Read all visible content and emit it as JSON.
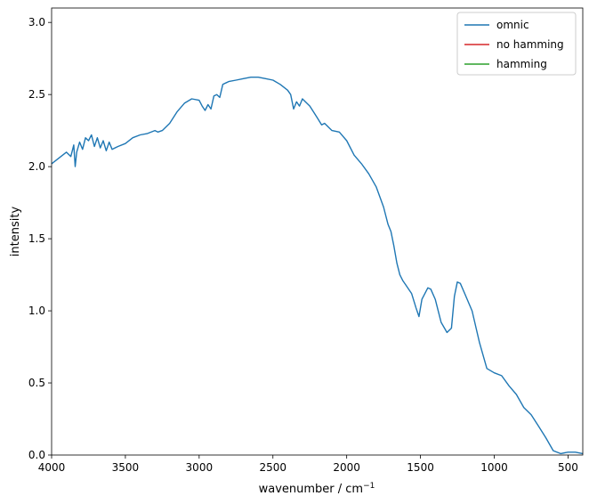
{
  "chart_data": {
    "type": "line",
    "title": "",
    "xlabel": "wavenumber / cm",
    "xlabel_sup": "−1",
    "ylabel": "intensity",
    "xlim": [
      4000,
      400
    ],
    "ylim": [
      0.0,
      3.1
    ],
    "x_inverted": true,
    "x_ticks": [
      4000,
      3500,
      3000,
      2500,
      2000,
      1500,
      1000,
      500
    ],
    "x_tick_labels": [
      "4000",
      "3500",
      "3000",
      "2500",
      "2000",
      "1500",
      "1000",
      "500"
    ],
    "y_ticks": [
      0.0,
      0.5,
      1.0,
      1.5,
      2.0,
      2.5,
      3.0
    ],
    "y_tick_labels": [
      "0.0",
      "0.5",
      "1.0",
      "1.5",
      "2.0",
      "2.5",
      "3.0"
    ],
    "grid": false,
    "legend_position": "top-right",
    "series": [
      {
        "name": "omnic",
        "color": "#1f77b4",
        "x": [
          4000,
          3950,
          3900,
          3870,
          3850,
          3840,
          3830,
          3810,
          3790,
          3770,
          3750,
          3730,
          3710,
          3690,
          3670,
          3650,
          3630,
          3610,
          3590,
          3550,
          3500,
          3450,
          3400,
          3350,
          3300,
          3280,
          3250,
          3200,
          3150,
          3100,
          3050,
          3000,
          2980,
          2960,
          2940,
          2920,
          2900,
          2880,
          2860,
          2840,
          2800,
          2750,
          2700,
          2650,
          2600,
          2550,
          2500,
          2450,
          2400,
          2380,
          2360,
          2340,
          2320,
          2300,
          2280,
          2250,
          2200,
          2170,
          2150,
          2100,
          2050,
          2000,
          1950,
          1900,
          1850,
          1800,
          1750,
          1720,
          1700,
          1680,
          1660,
          1640,
          1620,
          1600,
          1560,
          1530,
          1510,
          1490,
          1470,
          1450,
          1430,
          1400,
          1380,
          1360,
          1320,
          1290,
          1270,
          1250,
          1230,
          1200,
          1150,
          1100,
          1050,
          1000,
          950,
          900,
          850,
          800,
          750,
          700,
          650,
          600,
          550,
          500,
          450,
          400
        ],
        "y": [
          2.02,
          2.06,
          2.1,
          2.07,
          2.15,
          2.0,
          2.1,
          2.17,
          2.12,
          2.2,
          2.18,
          2.22,
          2.14,
          2.2,
          2.13,
          2.18,
          2.11,
          2.17,
          2.12,
          2.14,
          2.16,
          2.2,
          2.22,
          2.23,
          2.25,
          2.24,
          2.25,
          2.3,
          2.38,
          2.44,
          2.47,
          2.46,
          2.42,
          2.39,
          2.43,
          2.4,
          2.49,
          2.5,
          2.48,
          2.57,
          2.59,
          2.6,
          2.61,
          2.62,
          2.62,
          2.61,
          2.6,
          2.57,
          2.53,
          2.5,
          2.4,
          2.45,
          2.42,
          2.47,
          2.45,
          2.42,
          2.34,
          2.29,
          2.3,
          2.25,
          2.24,
          2.18,
          2.08,
          2.02,
          1.95,
          1.86,
          1.72,
          1.6,
          1.55,
          1.45,
          1.33,
          1.25,
          1.21,
          1.18,
          1.12,
          1.02,
          0.96,
          1.08,
          1.12,
          1.16,
          1.15,
          1.08,
          1.0,
          0.92,
          0.85,
          0.88,
          1.1,
          1.2,
          1.19,
          1.12,
          1.0,
          0.78,
          0.6,
          0.57,
          0.55,
          0.48,
          0.42,
          0.33,
          0.28,
          0.2,
          0.12,
          0.03,
          0.01,
          0.02,
          0.02,
          0.01
        ]
      },
      {
        "name": "no hamming",
        "color": "#d62728",
        "x": [],
        "y": []
      },
      {
        "name": "hamming",
        "color": "#2ca02c",
        "x": [],
        "y": []
      }
    ]
  }
}
